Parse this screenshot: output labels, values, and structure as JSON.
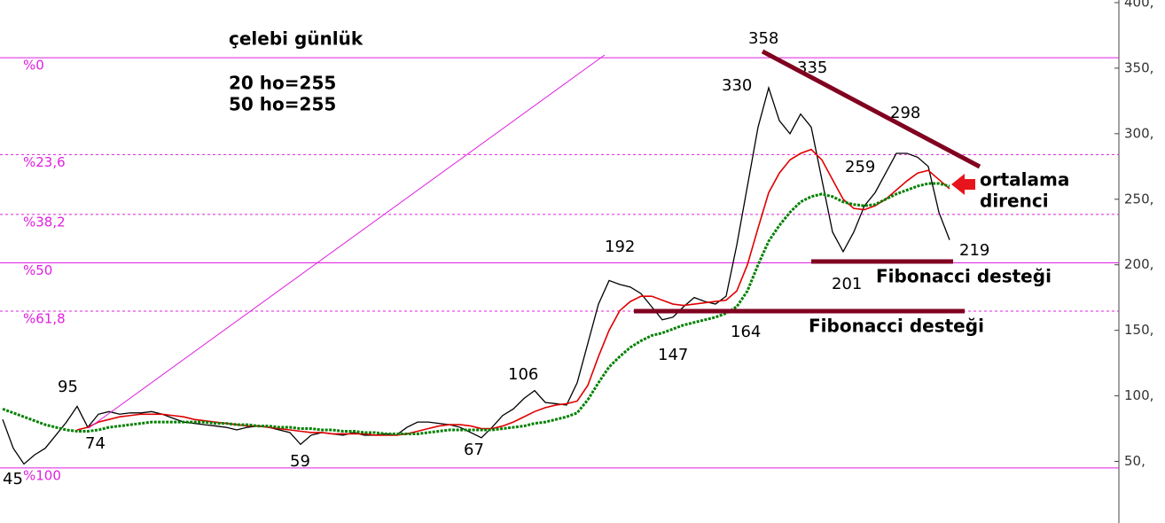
{
  "chart_data": {
    "type": "line",
    "title": "çelebi günlük",
    "subtitle_lines": [
      "20 ho=255",
      "50 ho=255"
    ],
    "annotations": {
      "support_1": "Fibonacci desteği",
      "support_2": "Fibonacci desteği",
      "resistance": [
        "ortalama",
        "direnci"
      ]
    },
    "point_labels": [
      45,
      95,
      74,
      59,
      67,
      106,
      192,
      147,
      164,
      330,
      358,
      335,
      259,
      298,
      201,
      219
    ],
    "fib_levels": [
      {
        "label": "%0",
        "value": 358,
        "style": "solid"
      },
      {
        "label": "%23,6",
        "value": 284.1,
        "style": "dashed"
      },
      {
        "label": "%38,2",
        "value": 238.4,
        "style": "dashed"
      },
      {
        "label": "%50",
        "value": 201.5,
        "style": "solid"
      },
      {
        "label": "%61,8",
        "value": 164.6,
        "style": "dashed"
      },
      {
        "label": "%100",
        "value": 45,
        "style": "solid"
      }
    ],
    "fib_color": "#e020e0",
    "categories": [
      null,
      null,
      null,
      null,
      null,
      null,
      null,
      null,
      null,
      null,
      null,
      null,
      null,
      null,
      null,
      null,
      null,
      null,
      null,
      null,
      null,
      null,
      null,
      null,
      null,
      null,
      null,
      null,
      null,
      null,
      null,
      null,
      null,
      null,
      null,
      null,
      null,
      null,
      null,
      null,
      null,
      null,
      null,
      null,
      null,
      null,
      null,
      null,
      null,
      null,
      null,
      null,
      null,
      null,
      null,
      null,
      null,
      null,
      null,
      null,
      null,
      null,
      null,
      null,
      null,
      null,
      null,
      null,
      null,
      null,
      null,
      null,
      null,
      null,
      null,
      null,
      null,
      null,
      null,
      null,
      null,
      null,
      null,
      null,
      null,
      null,
      null,
      null,
      null,
      null
    ],
    "series": [
      {
        "color": "#000000",
        "values": [
          82,
          60,
          48,
          55,
          60,
          70,
          80,
          92,
          76,
          86,
          88,
          86,
          87,
          87,
          88,
          86,
          83,
          80,
          79,
          78,
          77,
          76,
          74,
          76,
          77,
          76,
          74,
          72,
          63,
          70,
          72,
          71,
          70,
          72,
          70,
          70,
          71,
          70,
          76,
          80,
          80,
          79,
          78,
          76,
          72,
          68,
          76,
          85,
          90,
          98,
          104,
          95,
          94,
          93,
          110,
          140,
          170,
          188,
          185,
          183,
          178,
          168,
          158,
          160,
          168,
          175,
          172,
          170,
          176,
          215,
          260,
          305,
          335,
          310,
          300,
          315,
          305,
          265,
          225,
          210,
          225,
          245,
          255,
          270,
          285,
          285,
          282,
          275,
          240,
          219
        ]
      },
      {
        "color": "#e00000",
        "values": [
          null,
          null,
          null,
          null,
          null,
          null,
          null,
          74,
          76,
          80,
          82,
          84,
          85,
          86,
          86,
          86,
          85,
          84,
          82,
          81,
          80,
          79,
          78,
          77,
          77,
          76,
          75,
          74,
          73,
          72,
          72,
          71,
          71,
          71,
          71,
          70,
          70,
          70,
          71,
          73,
          75,
          77,
          78,
          78,
          77,
          75,
          75,
          77,
          80,
          84,
          88,
          91,
          93,
          94,
          96,
          108,
          130,
          150,
          165,
          172,
          176,
          176,
          173,
          170,
          169,
          170,
          171,
          172,
          173,
          180,
          200,
          228,
          255,
          270,
          280,
          285,
          288,
          280,
          265,
          250,
          243,
          242,
          245,
          250,
          257,
          264,
          270,
          272,
          265,
          258
        ]
      },
      {
        "color": "#008000",
        "values": [
          90,
          87,
          84,
          81,
          78,
          76,
          74,
          73,
          73,
          74,
          76,
          77,
          78,
          79,
          80,
          80,
          80,
          80,
          80,
          80,
          79,
          79,
          78,
          78,
          77,
          77,
          76,
          76,
          75,
          75,
          74,
          74,
          73,
          73,
          72,
          72,
          71,
          71,
          71,
          71,
          72,
          73,
          74,
          74,
          74,
          74,
          74,
          75,
          76,
          77,
          79,
          80,
          82,
          84,
          87,
          97,
          110,
          122,
          130,
          137,
          142,
          146,
          148,
          151,
          154,
          156,
          158,
          160,
          163,
          168,
          180,
          200,
          218,
          230,
          240,
          248,
          252,
          254,
          252,
          248,
          246,
          245,
          246,
          250,
          254,
          257,
          260,
          262,
          262,
          260
        ]
      }
    ],
    "ylim": [
      3,
      402
    ],
    "yticks": [
      {
        "value": 50,
        "label": "50,"
      },
      {
        "value": 100,
        "label": "100,"
      },
      {
        "value": 150,
        "label": "150,"
      },
      {
        "value": 200,
        "label": "200,"
      },
      {
        "value": 250,
        "label": "250,"
      },
      {
        "value": 300,
        "label": "300,"
      },
      {
        "value": 350,
        "label": "350,"
      },
      {
        "value": 400,
        "label": "400,"
      }
    ]
  }
}
